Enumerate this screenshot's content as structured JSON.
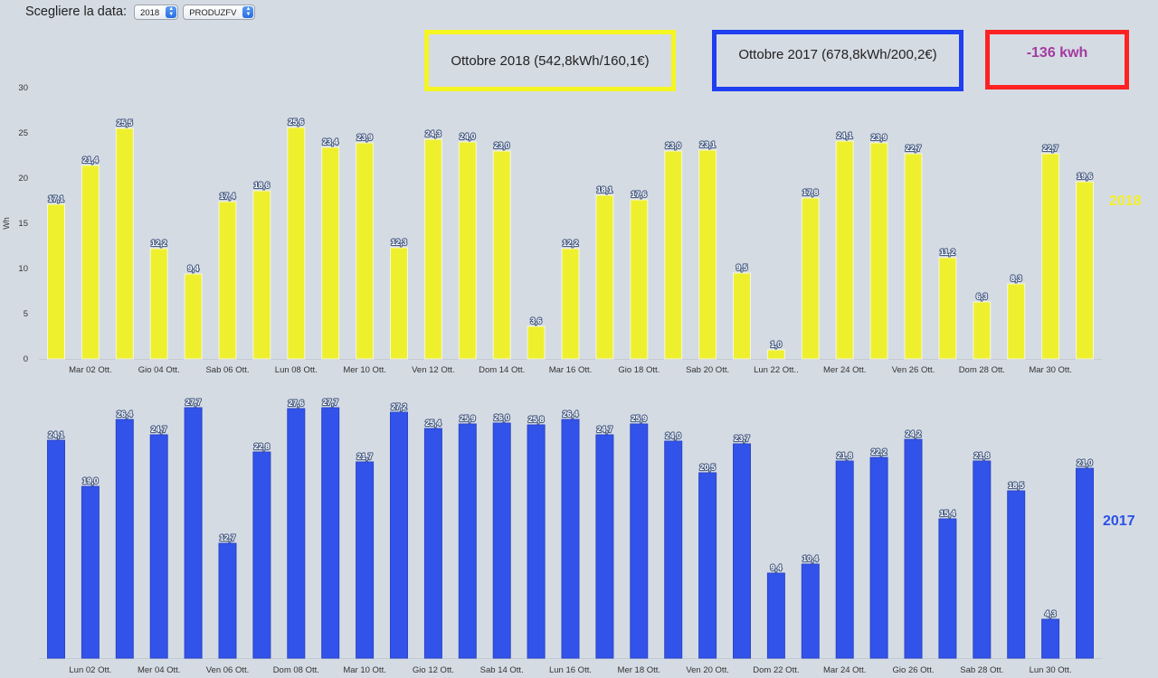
{
  "controls": {
    "label": "Scegliere la data:",
    "year_select": "2018",
    "type_select": "PRODUZFV"
  },
  "summary": {
    "box_2018": "Ottobre 2018 (542,8kWh/160,1€)",
    "box_2017": "Ottobre 2017 (678,8kWh/200,2€)",
    "difference": "-136 kwh"
  },
  "year_labels": {
    "top": "2018",
    "bottom": "2017"
  },
  "colors": {
    "bar_2018": "#eef02e",
    "bar_2017": "#3253ea",
    "year_2018": "#f2f02a",
    "year_2017": "#2a52e6",
    "box_2018": "#f5f522",
    "box_2017": "#1f3ff0",
    "box_diff": "#ff2222"
  },
  "chart_data": [
    {
      "type": "bar",
      "title": "2018",
      "ylabel": "Wh",
      "ylim": [
        0,
        30
      ],
      "yticks": [
        0,
        5,
        10,
        15,
        20,
        25,
        30
      ],
      "days": [
        "01",
        "02",
        "03",
        "04",
        "05",
        "06",
        "07",
        "08",
        "09",
        "10",
        "11",
        "12",
        "13",
        "14",
        "15",
        "16",
        "17",
        "18",
        "19",
        "20",
        "21",
        "22",
        "23",
        "24",
        "25",
        "26",
        "27",
        "28",
        "29",
        "30",
        "31"
      ],
      "values": [
        17.1,
        21.4,
        25.5,
        12.2,
        9.4,
        17.4,
        18.6,
        25.6,
        23.4,
        23.9,
        12.3,
        24.3,
        24.0,
        23.0,
        3.6,
        12.2,
        18.1,
        17.6,
        23.0,
        23.1,
        9.5,
        1.0,
        17.8,
        24.1,
        23.9,
        22.7,
        11.2,
        6.3,
        8.3,
        22.7,
        19.6
      ],
      "value_labels": [
        "17,1",
        "21,4",
        "25,5",
        "12,2",
        "9,4",
        "17,4",
        "18,6",
        "25,6",
        "23,4",
        "23,9",
        "12,3",
        "24,3",
        "24,0",
        "23,0",
        "3,6",
        "12,2",
        "18,1",
        "17,6",
        "23,0",
        "23,1",
        "9,5",
        "1,0",
        "17,8",
        "24,1",
        "23,9",
        "22,7",
        "11,2",
        "6,3",
        "8,3",
        "22,7",
        "19,6"
      ],
      "tick_labels": [
        {
          "index": 1,
          "label": "Mar 02 Ott."
        },
        {
          "index": 3,
          "label": "Gio 04 Ott."
        },
        {
          "index": 5,
          "label": "Sab 06 Ott."
        },
        {
          "index": 7,
          "label": "Lun 08 Ott."
        },
        {
          "index": 9,
          "label": "Mer 10 Ott."
        },
        {
          "index": 11,
          "label": "Ven 12 Ott."
        },
        {
          "index": 13,
          "label": "Dom 14 Ott."
        },
        {
          "index": 15,
          "label": "Mar 16 Ott."
        },
        {
          "index": 17,
          "label": "Gio 18 Ott."
        },
        {
          "index": 19,
          "label": "Sab 20 Ott."
        },
        {
          "index": 21,
          "label": "Lun 22 Ott.."
        },
        {
          "index": 23,
          "label": "Mer 24 Ott."
        },
        {
          "index": 25,
          "label": "Ven 26 Ott."
        },
        {
          "index": 27,
          "label": "Dom 28 Ott."
        },
        {
          "index": 29,
          "label": "Mar 30 Ott."
        }
      ]
    },
    {
      "type": "bar",
      "title": "2017",
      "ylabel": "",
      "ylim": [
        0,
        30
      ],
      "yticks": [],
      "days": [
        "01",
        "02",
        "03",
        "04",
        "05",
        "06",
        "07",
        "08",
        "09",
        "10",
        "11",
        "12",
        "13",
        "14",
        "15",
        "16",
        "17",
        "18",
        "19",
        "20",
        "21",
        "22",
        "23",
        "24",
        "25",
        "26",
        "27",
        "28",
        "29",
        "30",
        "31"
      ],
      "values": [
        24.1,
        19.0,
        26.4,
        24.7,
        27.7,
        12.7,
        22.8,
        27.6,
        27.7,
        21.7,
        27.2,
        25.4,
        25.9,
        26.0,
        25.8,
        26.4,
        24.7,
        25.9,
        24.0,
        20.5,
        23.7,
        9.4,
        10.4,
        21.8,
        22.2,
        24.2,
        15.4,
        21.8,
        18.5,
        4.3,
        21.0
      ],
      "value_labels": [
        "24,1",
        "19,0",
        "26,4",
        "24,7",
        "27,7",
        "12,7",
        "22,8",
        "27,6",
        "27,7",
        "21,7",
        "27,2",
        "25,4",
        "25,9",
        "26,0",
        "25,8",
        "26,4",
        "24,7",
        "25,9",
        "24,0",
        "20,5",
        "23,7",
        "9,4",
        "10,4",
        "21,8",
        "22,2",
        "24,2",
        "15,4",
        "21,8",
        "18,5",
        "4,3",
        "21,0"
      ],
      "tick_labels": [
        {
          "index": 1,
          "label": "Lun 02 Ott."
        },
        {
          "index": 3,
          "label": "Mer 04 Ott."
        },
        {
          "index": 5,
          "label": "Ven 06 Ott."
        },
        {
          "index": 7,
          "label": "Dom 08 Ott."
        },
        {
          "index": 9,
          "label": "Mar 10 Ott."
        },
        {
          "index": 11,
          "label": "Gio 12 Ott."
        },
        {
          "index": 13,
          "label": "Sab 14 Ott."
        },
        {
          "index": 15,
          "label": "Lun 16 Ott."
        },
        {
          "index": 17,
          "label": "Mer 18 Ott."
        },
        {
          "index": 19,
          "label": "Ven 20 Ott."
        },
        {
          "index": 21,
          "label": "Dom 22 Ott."
        },
        {
          "index": 23,
          "label": "Mar 24 Ott."
        },
        {
          "index": 25,
          "label": "Gio 26 Ott."
        },
        {
          "index": 27,
          "label": "Sab 28 Ott."
        },
        {
          "index": 29,
          "label": "Lun 30 Ott."
        }
      ]
    }
  ]
}
